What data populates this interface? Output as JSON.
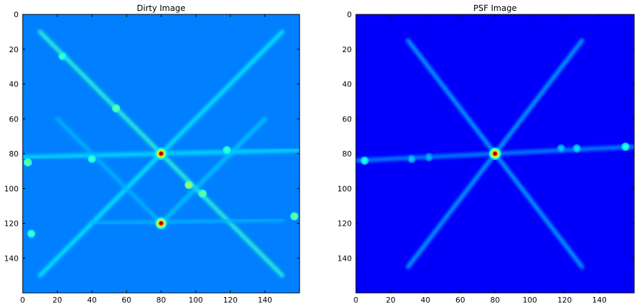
{
  "chart_data": [
    {
      "type": "heatmap",
      "title": "Dirty Image",
      "xlabel": "",
      "ylabel": "",
      "xlim": [
        0,
        160
      ],
      "ylim": [
        160,
        0
      ],
      "xticks": [
        0,
        20,
        40,
        60,
        80,
        100,
        120,
        140
      ],
      "yticks": [
        0,
        20,
        40,
        60,
        80,
        100,
        120,
        140
      ],
      "colormap": "jet",
      "background_value": 0.25,
      "peaks": [
        {
          "x": 80,
          "y": 80,
          "value": 1.0
        },
        {
          "x": 80,
          "y": 120,
          "value": 1.0
        },
        {
          "x": 96,
          "y": 98,
          "value": 0.55
        },
        {
          "x": 104,
          "y": 103,
          "value": 0.5
        },
        {
          "x": 54,
          "y": 54,
          "value": 0.5
        },
        {
          "x": 3,
          "y": 85,
          "value": 0.5
        },
        {
          "x": 157,
          "y": 116,
          "value": 0.5
        },
        {
          "x": 23,
          "y": 24,
          "value": 0.45
        },
        {
          "x": 118,
          "y": 78,
          "value": 0.45
        },
        {
          "x": 40,
          "y": 83,
          "value": 0.45
        },
        {
          "x": 5,
          "y": 126,
          "value": 0.45
        }
      ],
      "streaks": [
        {
          "x1": 10,
          "y1": 10,
          "x2": 150,
          "y2": 150,
          "value": 0.42
        },
        {
          "x1": 150,
          "y1": 10,
          "x2": 10,
          "y2": 150,
          "value": 0.36
        },
        {
          "x1": 0,
          "y1": 82,
          "x2": 160,
          "y2": 78,
          "value": 0.35
        },
        {
          "x1": 40,
          "y1": 120,
          "x2": 150,
          "y2": 118,
          "value": 0.3
        },
        {
          "x1": 80,
          "y1": 120,
          "x2": 140,
          "y2": 60,
          "value": 0.32
        },
        {
          "x1": 20,
          "y1": 60,
          "x2": 80,
          "y2": 120,
          "value": 0.3
        }
      ]
    },
    {
      "type": "heatmap",
      "title": "PSF Image",
      "xlabel": "",
      "ylabel": "",
      "xlim": [
        0,
        160
      ],
      "ylim": [
        160,
        0
      ],
      "xticks": [
        0,
        20,
        40,
        60,
        80,
        100,
        120,
        140
      ],
      "yticks": [
        0,
        20,
        40,
        60,
        80,
        100,
        120,
        140
      ],
      "colormap": "jet",
      "background_value": 0.12,
      "peaks": [
        {
          "x": 80,
          "y": 80,
          "value": 1.0
        },
        {
          "x": 155,
          "y": 76,
          "value": 0.42
        },
        {
          "x": 5,
          "y": 84,
          "value": 0.4
        },
        {
          "x": 127,
          "y": 77,
          "value": 0.35
        },
        {
          "x": 32,
          "y": 83,
          "value": 0.32
        },
        {
          "x": 118,
          "y": 77,
          "value": 0.32
        },
        {
          "x": 42,
          "y": 82,
          "value": 0.3
        }
      ],
      "streaks": [
        {
          "x1": 30,
          "y1": 15,
          "x2": 130,
          "y2": 145,
          "value": 0.3
        },
        {
          "x1": 130,
          "y1": 15,
          "x2": 30,
          "y2": 145,
          "value": 0.3
        },
        {
          "x1": 0,
          "y1": 84,
          "x2": 160,
          "y2": 76,
          "value": 0.27
        }
      ]
    }
  ]
}
